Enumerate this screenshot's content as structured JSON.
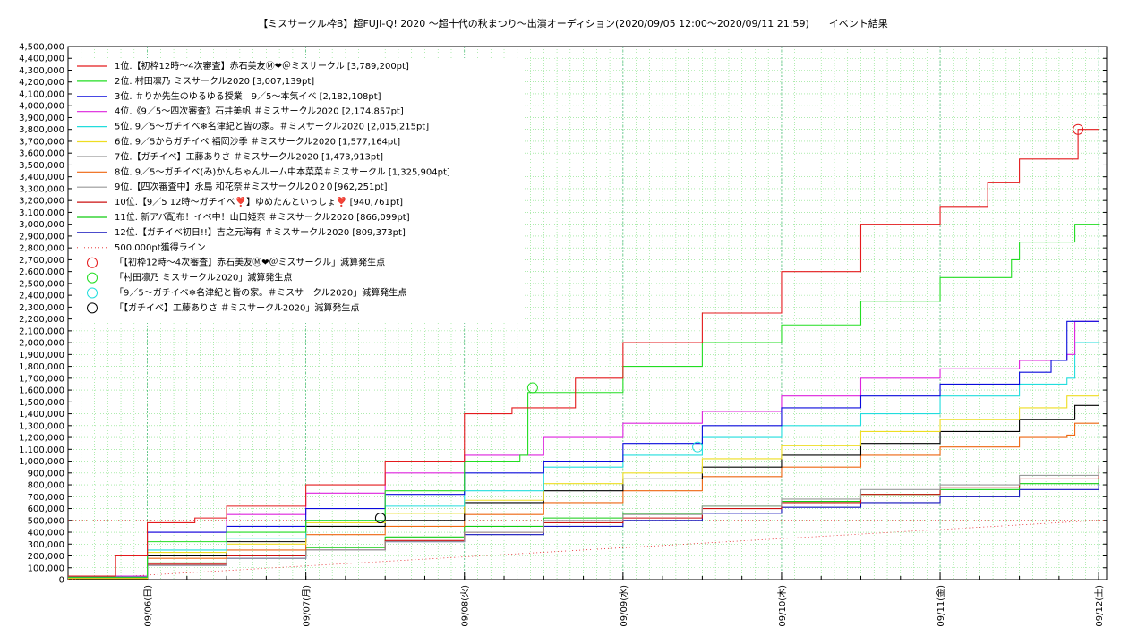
{
  "chart_data": {
    "type": "line",
    "title": "【ミスサークル枠B】超FUJI-Q! 2020 〜超十代の秋まつり〜出演オーディション(2020/09/05 12:00〜2020/09/11 21:59)　　イベント結果",
    "xlabel": "",
    "ylabel": "",
    "x_unit": "days since 2020/09/05 12:00",
    "xlim": [
      0,
      6.55
    ],
    "ylim": [
      0,
      4500000
    ],
    "ytick_step": 100000,
    "grid": true,
    "legend_position": "top-left",
    "x_ticks": [
      {
        "x": 0.5,
        "label": "09/06(日)"
      },
      {
        "x": 1.5,
        "label": "09/07(月)"
      },
      {
        "x": 2.5,
        "label": "09/08(火)"
      },
      {
        "x": 3.5,
        "label": "09/09(水)"
      },
      {
        "x": 4.5,
        "label": "09/10(木)"
      },
      {
        "x": 5.5,
        "label": "09/11(金)"
      },
      {
        "x": 6.5,
        "label": "09/12(土)"
      }
    ],
    "series": [
      {
        "name": "1位.【初枠12時〜4次審査】赤石美友Ⓜ︎❤︎＠ミスサークル [3,789,200pt]",
        "color": "#e41a1c",
        "points": [
          [
            0,
            30000
          ],
          [
            0.3,
            200000
          ],
          [
            0.5,
            480000
          ],
          [
            0.8,
            520000
          ],
          [
            1.0,
            620000
          ],
          [
            1.5,
            800000
          ],
          [
            2.0,
            1000000
          ],
          [
            2.5,
            1400000
          ],
          [
            2.8,
            1450000
          ],
          [
            3.2,
            1700000
          ],
          [
            3.5,
            2000000
          ],
          [
            4.0,
            2250000
          ],
          [
            4.5,
            2600000
          ],
          [
            5.0,
            3000000
          ],
          [
            5.5,
            3150000
          ],
          [
            5.8,
            3350000
          ],
          [
            6.0,
            3550000
          ],
          [
            6.37,
            3800000
          ],
          [
            6.5,
            3800000
          ]
        ]
      },
      {
        "name": "2位. 村田凛乃 ミスサークル2020 [3,007,139pt]",
        "color": "#22dd22",
        "points": [
          [
            0,
            20000
          ],
          [
            0.5,
            320000
          ],
          [
            1.0,
            400000
          ],
          [
            1.5,
            500000
          ],
          [
            2.0,
            750000
          ],
          [
            2.5,
            1000000
          ],
          [
            2.85,
            1050000
          ],
          [
            2.9,
            1580000
          ],
          [
            3.5,
            1800000
          ],
          [
            4.0,
            2000000
          ],
          [
            4.5,
            2150000
          ],
          [
            5.0,
            2350000
          ],
          [
            5.5,
            2550000
          ],
          [
            5.95,
            2700000
          ],
          [
            6.0,
            2850000
          ],
          [
            6.3,
            2850000
          ],
          [
            6.35,
            3000000
          ],
          [
            6.5,
            3000000
          ]
        ]
      },
      {
        "name": "3位. ＃りか先生のゆるゆる授業　9／5〜本気イベ [2,182,108pt]",
        "color": "#0a0adc",
        "points": [
          [
            0,
            20000
          ],
          [
            0.5,
            400000
          ],
          [
            1.0,
            450000
          ],
          [
            1.5,
            600000
          ],
          [
            2.0,
            720000
          ],
          [
            2.5,
            900000
          ],
          [
            3.0,
            1000000
          ],
          [
            3.5,
            1150000
          ],
          [
            4.0,
            1300000
          ],
          [
            4.5,
            1450000
          ],
          [
            5.0,
            1550000
          ],
          [
            5.5,
            1650000
          ],
          [
            6.0,
            1750000
          ],
          [
            6.2,
            1850000
          ],
          [
            6.3,
            2180000
          ],
          [
            6.5,
            2180000
          ]
        ]
      },
      {
        "name": "4位.《9／5〜四次審査》石井美帆 ＃ミスサークル2020 [2,174,857pt]",
        "color": "#dd22dd",
        "points": [
          [
            0,
            30000
          ],
          [
            0.5,
            400000
          ],
          [
            1.0,
            550000
          ],
          [
            1.5,
            730000
          ],
          [
            2.0,
            900000
          ],
          [
            2.5,
            1050000
          ],
          [
            3.0,
            1200000
          ],
          [
            3.5,
            1320000
          ],
          [
            4.0,
            1420000
          ],
          [
            4.5,
            1550000
          ],
          [
            5.0,
            1700000
          ],
          [
            5.5,
            1780000
          ],
          [
            6.0,
            1850000
          ],
          [
            6.3,
            1900000
          ],
          [
            6.35,
            2180000
          ],
          [
            6.5,
            2180000
          ]
        ]
      },
      {
        "name": "5位. 9／5〜ガチイベ❄︎名津紀と皆の家。＃ミスサークル2020 [2,015,215pt]",
        "color": "#22dddd",
        "points": [
          [
            0,
            20000
          ],
          [
            0.5,
            250000
          ],
          [
            1.0,
            350000
          ],
          [
            1.5,
            500000
          ],
          [
            2.0,
            620000
          ],
          [
            2.5,
            750000
          ],
          [
            3.0,
            950000
          ],
          [
            3.5,
            1050000
          ],
          [
            4.0,
            1200000
          ],
          [
            4.5,
            1300000
          ],
          [
            5.0,
            1400000
          ],
          [
            5.5,
            1550000
          ],
          [
            6.0,
            1650000
          ],
          [
            6.3,
            1700000
          ],
          [
            6.35,
            2000000
          ],
          [
            6.5,
            2000000
          ]
        ]
      },
      {
        "name": "6位. 9／5からガチイベ 福岡沙季 ＃ミスサークル2020 [1,577,164pt]",
        "color": "#eedd22",
        "points": [
          [
            0,
            10000
          ],
          [
            0.5,
            230000
          ],
          [
            1.0,
            300000
          ],
          [
            1.5,
            480000
          ],
          [
            2.0,
            560000
          ],
          [
            2.5,
            670000
          ],
          [
            3.0,
            810000
          ],
          [
            3.5,
            900000
          ],
          [
            4.0,
            1020000
          ],
          [
            4.5,
            1130000
          ],
          [
            5.0,
            1250000
          ],
          [
            5.5,
            1350000
          ],
          [
            6.0,
            1450000
          ],
          [
            6.3,
            1550000
          ],
          [
            6.5,
            1580000
          ]
        ]
      },
      {
        "name": "7位.【ガチイベ】工藤ありさ ＃ミスサークル2020 [1,473,913pt]",
        "color": "#000000",
        "points": [
          [
            0,
            10000
          ],
          [
            0.5,
            200000
          ],
          [
            1.0,
            320000
          ],
          [
            1.5,
            450000
          ],
          [
            2.0,
            500000
          ],
          [
            2.5,
            650000
          ],
          [
            3.0,
            750000
          ],
          [
            3.5,
            850000
          ],
          [
            4.0,
            950000
          ],
          [
            4.5,
            1050000
          ],
          [
            5.0,
            1150000
          ],
          [
            5.5,
            1250000
          ],
          [
            6.0,
            1350000
          ],
          [
            6.35,
            1470000
          ],
          [
            6.5,
            1470000
          ]
        ]
      },
      {
        "name": "8位. 9／5〜ガチイベ(み)かんちゃんルーム中本菜菜＃ミスサークル [1,325,904pt]",
        "color": "#ee6611",
        "points": [
          [
            0,
            10000
          ],
          [
            0.5,
            180000
          ],
          [
            1.0,
            250000
          ],
          [
            1.5,
            380000
          ],
          [
            2.0,
            450000
          ],
          [
            2.5,
            550000
          ],
          [
            3.0,
            650000
          ],
          [
            3.5,
            750000
          ],
          [
            4.0,
            870000
          ],
          [
            4.5,
            950000
          ],
          [
            5.0,
            1050000
          ],
          [
            5.5,
            1120000
          ],
          [
            6.0,
            1200000
          ],
          [
            6.3,
            1220000
          ],
          [
            6.35,
            1320000
          ],
          [
            6.5,
            1320000
          ]
        ]
      },
      {
        "name": "9位.【四次審査中】永島 和花奈＃ミスサークル2０2０[962,251pt]",
        "color": "#999999",
        "points": [
          [
            0,
            10000
          ],
          [
            0.5,
            120000
          ],
          [
            1.0,
            180000
          ],
          [
            1.5,
            250000
          ],
          [
            2.0,
            320000
          ],
          [
            2.5,
            400000
          ],
          [
            3.0,
            500000
          ],
          [
            3.5,
            550000
          ],
          [
            4.0,
            620000
          ],
          [
            4.5,
            680000
          ],
          [
            5.0,
            760000
          ],
          [
            5.5,
            800000
          ],
          [
            6.0,
            880000
          ],
          [
            6.5,
            960000
          ]
        ]
      },
      {
        "name": "10位.【9／5 12時〜ガチイベ❣️】ゆめたんといっしょ❣️ [940,761pt]",
        "color": "#cc1111",
        "points": [
          [
            0,
            10000
          ],
          [
            0.5,
            130000
          ],
          [
            1.0,
            200000
          ],
          [
            1.5,
            250000
          ],
          [
            2.0,
            330000
          ],
          [
            2.5,
            400000
          ],
          [
            3.0,
            480000
          ],
          [
            3.5,
            520000
          ],
          [
            4.0,
            600000
          ],
          [
            4.5,
            650000
          ],
          [
            5.0,
            720000
          ],
          [
            5.5,
            780000
          ],
          [
            6.0,
            850000
          ],
          [
            6.5,
            940000
          ]
        ]
      },
      {
        "name": "11位. 新アバ配布！イベ中！山口姫奈 ＃ミスサークル2020 [866,099pt]",
        "color": "#11cc11",
        "points": [
          [
            0,
            10000
          ],
          [
            0.5,
            140000
          ],
          [
            1.0,
            200000
          ],
          [
            1.5,
            270000
          ],
          [
            2.0,
            360000
          ],
          [
            2.5,
            450000
          ],
          [
            3.0,
            520000
          ],
          [
            3.5,
            560000
          ],
          [
            4.0,
            620000
          ],
          [
            4.5,
            660000
          ],
          [
            5.0,
            720000
          ],
          [
            5.5,
            760000
          ],
          [
            6.0,
            810000
          ],
          [
            6.5,
            860000
          ]
        ]
      },
      {
        "name": "12位.【ガチイベ初日!!】吉之元海有 ＃ミスサークル2020 [809,373pt]",
        "color": "#1111bb",
        "points": [
          [
            0,
            10000
          ],
          [
            0.5,
            120000
          ],
          [
            1.0,
            180000
          ],
          [
            1.5,
            250000
          ],
          [
            2.0,
            320000
          ],
          [
            2.5,
            380000
          ],
          [
            3.0,
            450000
          ],
          [
            3.5,
            500000
          ],
          [
            4.0,
            560000
          ],
          [
            4.5,
            610000
          ],
          [
            5.0,
            650000
          ],
          [
            5.5,
            700000
          ],
          [
            6.0,
            760000
          ],
          [
            6.5,
            810000
          ]
        ]
      }
    ],
    "reference_lines": [
      {
        "name": "500,000pt獲得ライン",
        "color": "#e41a1c",
        "y": 500000
      }
    ],
    "diagonal_reference": {
      "color": "#e41a1c",
      "points": [
        [
          0,
          0
        ],
        [
          6.5,
          500000
        ]
      ]
    },
    "penalty_markers": [
      {
        "name": "「【初枠12時〜4次審査】赤石美友Ⓜ︎❤︎＠ミスサークル」減算発生点",
        "color": "#e41a1c",
        "x": 6.37,
        "y": 3800000
      },
      {
        "name": "「村田凛乃 ミスサークル2020」減算発生点",
        "color": "#22dd22",
        "x": 2.93,
        "y": 1620000
      },
      {
        "name": "「9／5〜ガチイベ❄︎名津紀と皆の家。＃ミスサークル2020」減算発生点",
        "color": "#22dddd",
        "x": 3.97,
        "y": 1120000
      },
      {
        "name": "「【ガチイベ】工藤ありさ ＃ミスサークル2020」減算発生点",
        "color": "#000000",
        "x": 1.97,
        "y": 520000
      }
    ]
  }
}
